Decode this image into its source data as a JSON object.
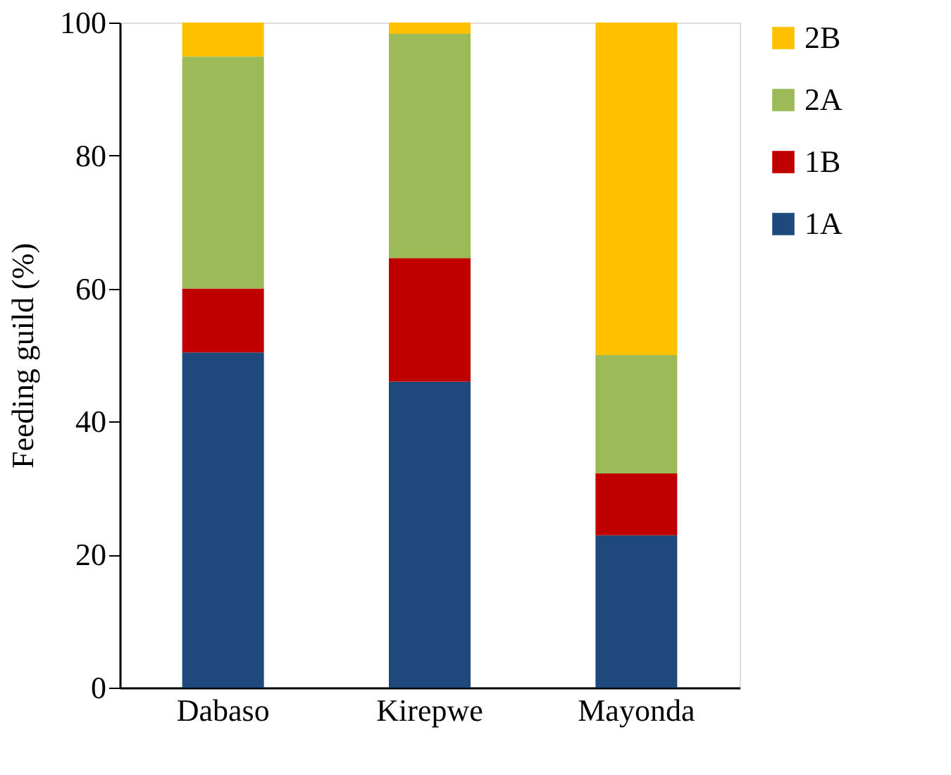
{
  "chart_data": {
    "type": "bar",
    "stacked": true,
    "ylabel": "Feeding guild (%)",
    "categories": [
      "Dabaso",
      "Kirepwe",
      "Mayonda"
    ],
    "series": [
      {
        "name": "1A",
        "color": "#1f497d",
        "values": [
          50.4,
          46.0,
          22.9
        ]
      },
      {
        "name": "1B",
        "color": "#c00000",
        "values": [
          9.6,
          18.6,
          9.3
        ]
      },
      {
        "name": "2A",
        "color": "#9bbb59",
        "values": [
          34.9,
          33.7,
          17.8
        ]
      },
      {
        "name": "2B",
        "color": "#ffc000",
        "values": [
          5.1,
          1.7,
          50.0
        ]
      }
    ],
    "ylim": [
      0,
      100
    ],
    "yticks": [
      0,
      20,
      40,
      60,
      80,
      100
    ],
    "grid": false,
    "legend": "right"
  }
}
